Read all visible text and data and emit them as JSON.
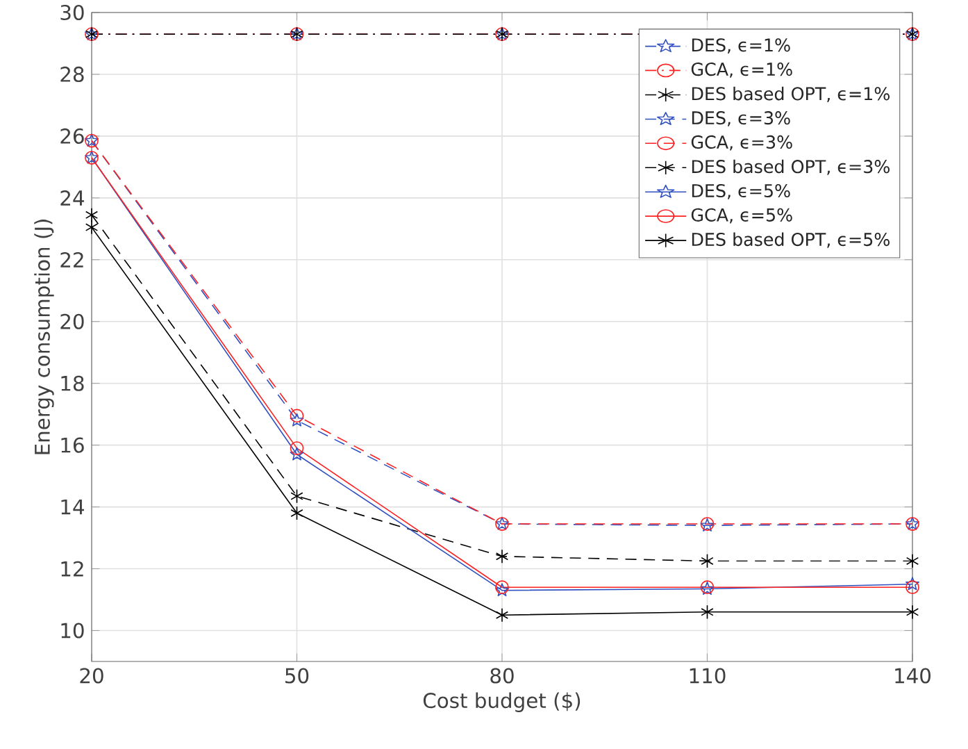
{
  "chart_data": {
    "type": "line",
    "xlabel": "Cost budget ($)",
    "ylabel": "Energy consumption (J)",
    "x": [
      20,
      50,
      80,
      110,
      140
    ],
    "xlim": [
      20,
      140
    ],
    "xticks": [
      20,
      50,
      80,
      110,
      140
    ],
    "ylim": [
      9,
      30
    ],
    "yticks": [
      10,
      12,
      14,
      16,
      18,
      20,
      22,
      24,
      26,
      28,
      30
    ],
    "grid": true,
    "legend": "top right",
    "series": [
      {
        "name": "DES, ϵ=1%",
        "color": "#3050c0",
        "marker": "star",
        "line_style": "dashdot",
        "values": [
          29.3,
          29.3,
          29.3,
          null,
          29.3
        ]
      },
      {
        "name": "GCA, ϵ=1%",
        "color": "#ff2020",
        "marker": "circle",
        "line_style": "dashdot",
        "values": [
          29.3,
          29.3,
          29.3,
          null,
          29.3
        ]
      },
      {
        "name": "DES based OPT, ϵ=1%",
        "color": "#000000",
        "marker": "cross",
        "line_style": "dashdot",
        "values": [
          29.3,
          29.3,
          29.3,
          null,
          29.3
        ]
      },
      {
        "name": "DES, ϵ=3%",
        "color": "#3050c0",
        "marker": "star",
        "line_style": "dashed",
        "values": [
          25.85,
          16.8,
          13.45,
          13.4,
          13.45
        ]
      },
      {
        "name": "GCA, ϵ=3%",
        "color": "#ff2020",
        "marker": "circle",
        "line_style": "dashed",
        "values": [
          25.85,
          16.95,
          13.45,
          13.45,
          13.45
        ]
      },
      {
        "name": "DES based OPT, ϵ=3%",
        "color": "#000000",
        "marker": "cross",
        "line_style": "dashed",
        "values": [
          23.45,
          14.35,
          12.4,
          12.25,
          12.25
        ]
      },
      {
        "name": "DES, ϵ=5%",
        "color": "#3050c0",
        "marker": "star",
        "line_style": "solid",
        "values": [
          25.3,
          15.7,
          11.3,
          11.35,
          11.5
        ]
      },
      {
        "name": "GCA, ϵ=5%",
        "color": "#ff2020",
        "marker": "circle",
        "line_style": "solid",
        "values": [
          25.3,
          15.9,
          11.4,
          11.4,
          11.4
        ]
      },
      {
        "name": "DES based OPT, ϵ=5%",
        "color": "#000000",
        "marker": "cross",
        "line_style": "solid",
        "values": [
          23.05,
          13.8,
          10.5,
          10.6,
          10.6
        ]
      }
    ]
  }
}
